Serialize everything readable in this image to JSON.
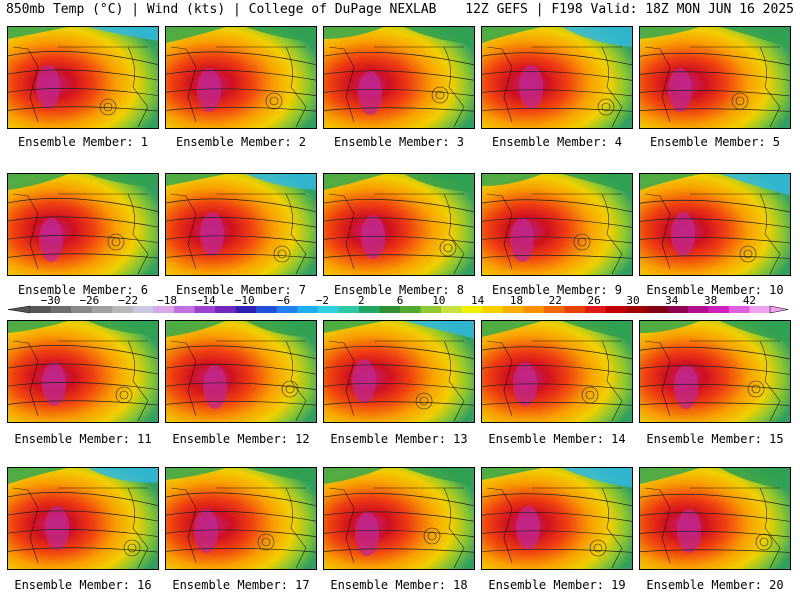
{
  "header": {
    "left": "850mb Temp (°C) | Wind (kts) | College of DuPage NEXLAB",
    "right": "12Z GEFS | F198 Valid: 18Z MON JUN 16 2025"
  },
  "panels": [
    {
      "label": "Ensemble Member: 1"
    },
    {
      "label": "Ensemble Member: 2"
    },
    {
      "label": "Ensemble Member: 3"
    },
    {
      "label": "Ensemble Member: 4"
    },
    {
      "label": "Ensemble Member: 5"
    },
    {
      "label": "Ensemble Member: 6"
    },
    {
      "label": "Ensemble Member: 7"
    },
    {
      "label": "Ensemble Member: 8"
    },
    {
      "label": "Ensemble Member: 9"
    },
    {
      "label": "Ensemble Member: 10"
    },
    {
      "label": "Ensemble Member: 11"
    },
    {
      "label": "Ensemble Member: 12"
    },
    {
      "label": "Ensemble Member: 13"
    },
    {
      "label": "Ensemble Member: 14"
    },
    {
      "label": "Ensemble Member: 15"
    },
    {
      "label": "Ensemble Member: 16"
    },
    {
      "label": "Ensemble Member: 17"
    },
    {
      "label": "Ensemble Member: 18"
    },
    {
      "label": "Ensemble Member: 19"
    },
    {
      "label": "Ensemble Member: 20"
    }
  ],
  "colorbar": {
    "ticks": [
      "-30",
      "-26",
      "-22",
      "-18",
      "-14",
      "-10",
      "-6",
      "-2",
      "2",
      "6",
      "10",
      "14",
      "18",
      "22",
      "26",
      "30",
      "34",
      "38",
      "42"
    ],
    "colors": [
      "#555555",
      "#6e6e6e",
      "#888888",
      "#a0a0a0",
      "#b8b8b8",
      "#c8c8e0",
      "#d8a8e8",
      "#c070e0",
      "#a040d0",
      "#7028c0",
      "#3020b0",
      "#2050d8",
      "#2080f0",
      "#20b0f0",
      "#30d0e0",
      "#30c8a0",
      "#20a860",
      "#309030",
      "#50a830",
      "#90c830",
      "#c8e040",
      "#f0f000",
      "#f8d000",
      "#f8b000",
      "#f89000",
      "#f06800",
      "#e84000",
      "#e01818",
      "#c00000",
      "#a00000",
      "#800010",
      "#900050",
      "#b01090",
      "#d020c0",
      "#e060e0",
      "#f0a0f0"
    ]
  }
}
